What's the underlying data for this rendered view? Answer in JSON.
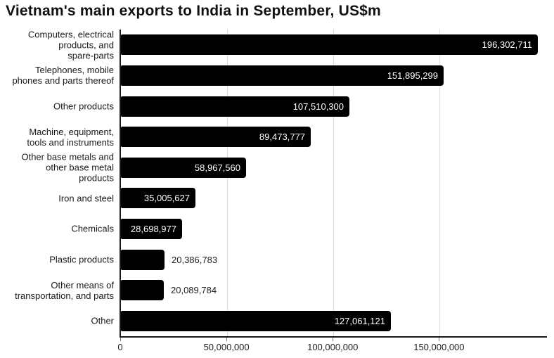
{
  "title": "Vietnam's main exports to India in September, US$m",
  "chart_data": {
    "type": "bar",
    "orientation": "horizontal",
    "title": "Vietnam's main exports to India in September, US$m",
    "categories": [
      "Computers, electrical products, and spare-parts",
      "Telephones, mobile phones and parts thereof",
      "Other products",
      "Machine, equipment, tools and instruments",
      "Other base metals and other base metal products",
      "Iron and steel",
      "Chemicals",
      "Plastic products",
      "Other means of transportation, and parts",
      "Other"
    ],
    "category_labels_wrapped": [
      [
        "Computers, electrical",
        "products, and",
        "spare-parts"
      ],
      [
        "Telephones, mobile",
        "phones and parts thereof"
      ],
      [
        "Other products"
      ],
      [
        "Machine, equipment,",
        "tools and instruments"
      ],
      [
        "Other base metals and",
        "other base metal",
        "products"
      ],
      [
        "Iron and steel"
      ],
      [
        "Chemicals"
      ],
      [
        "Plastic products"
      ],
      [
        "Other means of",
        "transportation, and parts"
      ],
      [
        "Other"
      ]
    ],
    "values": [
      196302711,
      151895299,
      107510300,
      89473777,
      58967560,
      35005627,
      28698977,
      20386783,
      20089784,
      127061121
    ],
    "value_labels": [
      "196,302,711",
      "151,895,299",
      "107,510,300",
      "89,473,777",
      "58,967,560",
      "35,005,627",
      "28,698,977",
      "20,386,783",
      "20,089,784",
      "127,061,121"
    ],
    "xlabel": "",
    "ylabel": "",
    "xlim": [
      0,
      200500000
    ],
    "xticks": [
      0,
      50000000,
      100000000,
      150000000
    ],
    "xtick_labels": [
      "0",
      "50,000,000",
      "100,000,000",
      "150,000,000"
    ],
    "grid": "vertical",
    "legend": "none",
    "colors": {
      "bar": "#000000",
      "value_label_inside": "#ffffff",
      "value_label_outside": "#222222",
      "gridline": "#dddddd",
      "axis_line": "#1a1a1a",
      "tick_label": "#222222",
      "category_label": "#1a1a1a",
      "title": "#111111",
      "background": "#ffffff"
    }
  }
}
